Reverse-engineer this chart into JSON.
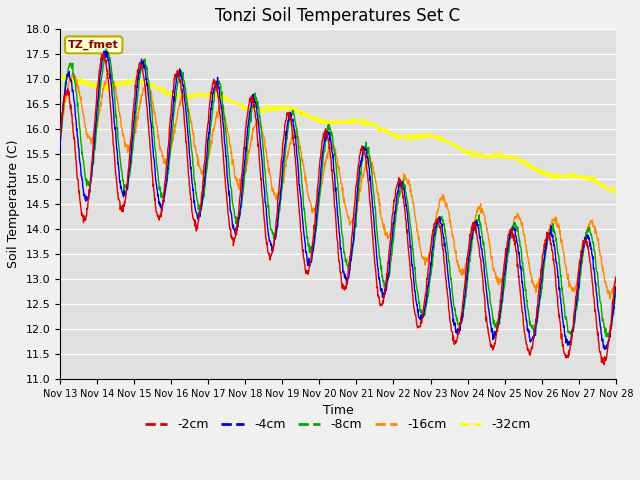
{
  "title": "Tonzi Soil Temperatures Set C",
  "xlabel": "Time",
  "ylabel": "Soil Temperature (C)",
  "ylim": [
    11.0,
    18.0
  ],
  "yticks": [
    11.0,
    11.5,
    12.0,
    12.5,
    13.0,
    13.5,
    14.0,
    14.5,
    15.0,
    15.5,
    16.0,
    16.5,
    17.0,
    17.5,
    18.0
  ],
  "xtick_labels": [
    "Nov 13",
    "Nov 14",
    "Nov 15",
    "Nov 16",
    "Nov 17",
    "Nov 18",
    "Nov 19",
    "Nov 20",
    "Nov 21",
    "Nov 22",
    "Nov 23",
    "Nov 24",
    "Nov 25",
    "Nov 26",
    "Nov 27",
    "Nov 28"
  ],
  "colors": {
    "-2cm": "#dd0000",
    "-4cm": "#0000dd",
    "-8cm": "#00aa00",
    "-16cm": "#ff8800",
    "-32cm": "#ffff00"
  },
  "legend_labels": [
    "-2cm",
    "-4cm",
    "-8cm",
    "-16cm",
    "-32cm"
  ],
  "annotation_text": "TZ_fmet",
  "fig_bg_color": "#f0f0f0",
  "plot_bg_color": "#e0e0e0"
}
